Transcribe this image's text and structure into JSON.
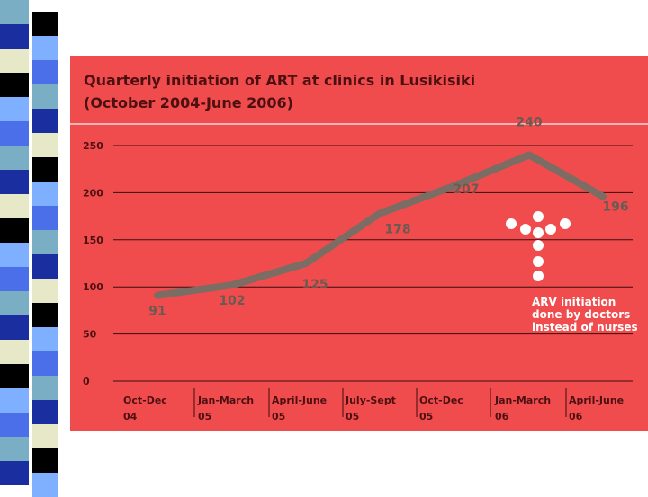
{
  "colors": {
    "panel_bg": "#f04c4e",
    "title_text": "#4d1010",
    "line": "#7b6c64",
    "label_text": "#6b5a52",
    "note_text": "#ffffff",
    "dot": "#ffffff",
    "grid": "#3a0d0d",
    "strip_colors": [
      "#7aaec4",
      "#1a2ea0",
      "#e6e8c8",
      "#000000",
      "#7fb0ff",
      "#4a6fe8"
    ]
  },
  "chart_data": {
    "type": "line",
    "title": "Quarterly initiation of ART at clinics in Lusikisiki",
    "subtitle": "(October 2004-June 2006)",
    "xlabel": "",
    "ylabel": "",
    "ylim": [
      0,
      250
    ],
    "yticks": [
      {
        "value": 250,
        "label": "250"
      },
      {
        "value": 200,
        "label": "200"
      },
      {
        "value": 150,
        "label": "150"
      },
      {
        "value": 100,
        "label": "100"
      },
      {
        "value": 50,
        "label": "50"
      },
      {
        "value": 0,
        "label": "0"
      }
    ],
    "categories": [
      {
        "line1": "Oct-Dec",
        "line2": "04"
      },
      {
        "line1": "Jan-March",
        "line2": "05"
      },
      {
        "line1": "April-June",
        "line2": "05"
      },
      {
        "line1": "July-Sept",
        "line2": "05"
      },
      {
        "line1": "Oct-Dec",
        "line2": "05"
      },
      {
        "line1": "Jan-March",
        "line2": "06"
      },
      {
        "line1": "April-June",
        "line2": "06"
      }
    ],
    "series": [
      {
        "name": "ART initiations",
        "values": [
          91,
          102,
          125,
          178,
          207,
          240,
          196
        ],
        "labels": [
          "91",
          "102",
          "125",
          "178",
          "207",
          "240",
          "196"
        ]
      }
    ],
    "annotation": {
      "lines": [
        "ARV initiation",
        "done by doctors",
        "instead of nurses"
      ]
    }
  }
}
